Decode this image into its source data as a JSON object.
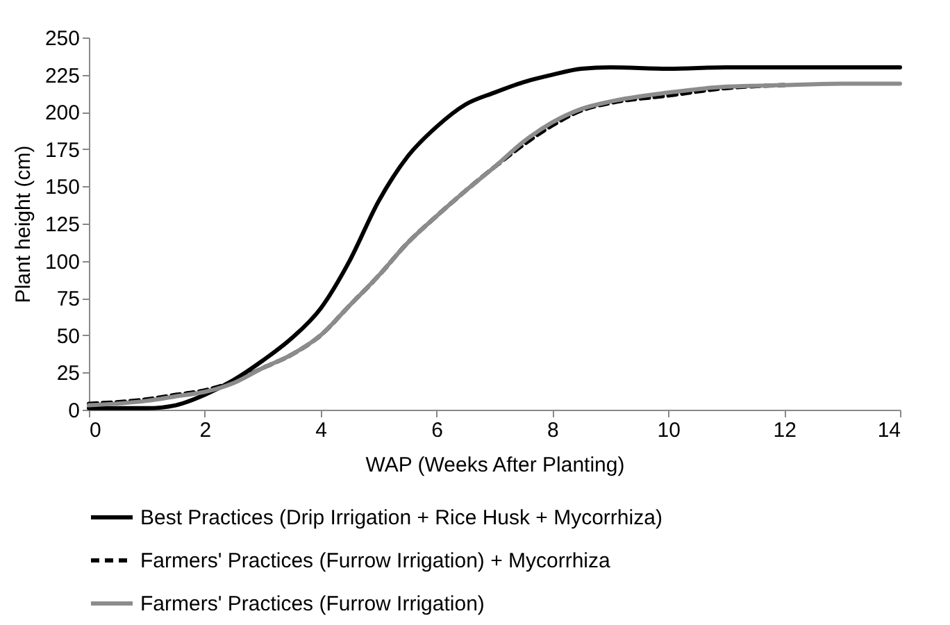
{
  "chart_data": {
    "type": "line",
    "xlabel": "WAP (Weeks After Planting)",
    "ylabel": "Plant height (cm)",
    "x": [
      0,
      1,
      1.5,
      2,
      2.5,
      3,
      3.5,
      4,
      4.5,
      5,
      5.5,
      6,
      6.5,
      7,
      7.5,
      8,
      8.5,
      9,
      10,
      11,
      12,
      13,
      14
    ],
    "series": [
      {
        "name": "Best Practices (Drip Irrigation + Rice Husk + Mycorrhiza)",
        "color": "#000000",
        "line_style": "solid",
        "values": [
          1,
          1,
          3,
          10,
          20,
          33,
          48,
          68,
          100,
          140,
          170,
          190,
          205,
          213,
          220,
          225,
          229,
          230,
          229,
          230,
          230,
          230,
          230
        ]
      },
      {
        "name": "Farmers' Practices (Furrow Irrigation) + Mycorrhiza",
        "color": "#000000",
        "line_style": "dashed",
        "values": [
          4,
          7,
          10,
          13,
          19,
          28,
          37,
          50,
          70,
          90,
          112,
          130,
          147,
          163,
          178,
          191,
          201,
          206,
          211,
          216,
          218,
          null,
          null
        ]
      },
      {
        "name": "Farmers' Practices (Furrow Irrigation)",
        "color": "#8c8c8c",
        "line_style": "solid",
        "values": [
          3,
          6,
          9,
          12,
          18,
          28,
          37,
          50,
          70,
          90,
          112,
          130,
          147,
          163,
          180,
          193,
          202,
          207,
          213,
          217,
          218,
          219,
          219
        ]
      }
    ],
    "xlim": [
      0,
      14
    ],
    "xticks": [
      0,
      2,
      4,
      6,
      8,
      10,
      12,
      14
    ],
    "ylim": [
      0,
      250
    ],
    "yticks": [
      0,
      25,
      50,
      75,
      100,
      125,
      150,
      175,
      200,
      225,
      250
    ],
    "grid": false,
    "legend": "bottom",
    "marker": "none"
  }
}
